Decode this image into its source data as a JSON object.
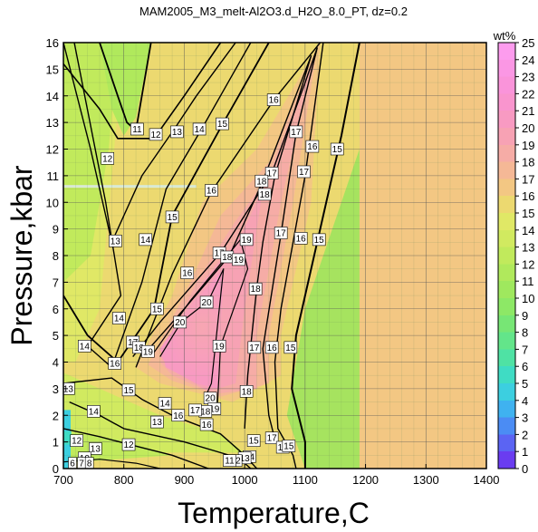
{
  "chart_data": {
    "type": "heatmap",
    "title": "MAM2005_M3_melt-Al2O3.d_H2O_8.0_PT, dz=0.2",
    "xlabel": "Temperature,C",
    "ylabel": "Pressure,kbar",
    "xlim": [
      700,
      1400
    ],
    "ylim": [
      0,
      16
    ],
    "xticks": [
      700,
      800,
      900,
      1000,
      1100,
      1200,
      1300,
      1400
    ],
    "yticks": [
      0,
      1,
      2,
      3,
      4,
      5,
      6,
      7,
      8,
      9,
      10,
      11,
      12,
      13,
      14,
      15,
      16
    ],
    "grid": true,
    "colorbar": {
      "label": "wt%",
      "min": 0,
      "max": 25,
      "ticks": [
        0,
        1,
        2,
        3,
        4,
        5,
        6,
        7,
        8,
        9,
        10,
        11,
        12,
        13,
        14,
        15,
        16,
        17,
        18,
        19,
        20,
        21,
        22,
        23,
        24,
        25
      ],
      "colors": [
        "#6a3cf0",
        "#5b64f3",
        "#4b8cf4",
        "#3fb2f0",
        "#3ccfe0",
        "#3fdcc4",
        "#4fe2a4",
        "#63e58a",
        "#77e675",
        "#8de866",
        "#9fe85e",
        "#b0e95c",
        "#c1ea5c",
        "#d1ea60",
        "#e0e866",
        "#ecd970",
        "#f3c783",
        "#f5b896",
        "#f6aca6",
        "#f7a2b4",
        "#f89ac2",
        "#f995ce",
        "#fa94da",
        "#fb97e4",
        "#fd9cee"
      ]
    },
    "subsolidus_region": {
      "x_min": 1190,
      "value": 16
    },
    "contour_labels": [
      {
        "t": 822,
        "p": 12.75,
        "v": 11
      },
      {
        "t": 773,
        "p": 11.65,
        "v": 12
      },
      {
        "t": 853,
        "p": 12.55,
        "v": 12
      },
      {
        "t": 888,
        "p": 12.65,
        "v": 13
      },
      {
        "t": 925,
        "p": 12.75,
        "v": 14
      },
      {
        "t": 963,
        "p": 12.95,
        "v": 15
      },
      {
        "t": 1048,
        "p": 13.85,
        "v": 16
      },
      {
        "t": 1085,
        "p": 12.65,
        "v": 17
      },
      {
        "t": 1112,
        "p": 12.1,
        "v": 16
      },
      {
        "t": 1153,
        "p": 12.0,
        "v": 15
      },
      {
        "t": 1045,
        "p": 11.1,
        "v": 17
      },
      {
        "t": 1028,
        "p": 10.8,
        "v": 18
      },
      {
        "t": 1033,
        "p": 10.3,
        "v": 18
      },
      {
        "t": 945,
        "p": 10.45,
        "v": 16
      },
      {
        "t": 1098,
        "p": 11.15,
        "v": 17
      },
      {
        "t": 786,
        "p": 8.55,
        "v": 13
      },
      {
        "t": 836,
        "p": 8.6,
        "v": 14
      },
      {
        "t": 880,
        "p": 9.45,
        "v": 15
      },
      {
        "t": 1003,
        "p": 8.6,
        "v": 19
      },
      {
        "t": 1060,
        "p": 8.85,
        "v": 17
      },
      {
        "t": 1093,
        "p": 8.65,
        "v": 16
      },
      {
        "t": 1123,
        "p": 8.6,
        "v": 15
      },
      {
        "t": 958,
        "p": 8.1,
        "v": 17
      },
      {
        "t": 971,
        "p": 7.95,
        "v": 18
      },
      {
        "t": 990,
        "p": 7.85,
        "v": 19
      },
      {
        "t": 905,
        "p": 7.35,
        "v": 16
      },
      {
        "t": 1018,
        "p": 6.75,
        "v": 18
      },
      {
        "t": 937,
        "p": 6.25,
        "v": 20
      },
      {
        "t": 792,
        "p": 5.65,
        "v": 14
      },
      {
        "t": 855,
        "p": 6.0,
        "v": 15
      },
      {
        "t": 893,
        "p": 5.5,
        "v": 20
      },
      {
        "t": 815,
        "p": 4.75,
        "v": 17
      },
      {
        "t": 825,
        "p": 4.55,
        "v": 18
      },
      {
        "t": 840,
        "p": 4.4,
        "v": 19
      },
      {
        "t": 958,
        "p": 4.6,
        "v": 19
      },
      {
        "t": 1016,
        "p": 4.55,
        "v": 17
      },
      {
        "t": 1045,
        "p": 4.55,
        "v": 16
      },
      {
        "t": 1076,
        "p": 4.55,
        "v": 15
      },
      {
        "t": 735,
        "p": 4.6,
        "v": 14
      },
      {
        "t": 785,
        "p": 3.95,
        "v": 16
      },
      {
        "t": 708,
        "p": 3.0,
        "v": 13
      },
      {
        "t": 750,
        "p": 2.15,
        "v": 14
      },
      {
        "t": 808,
        "p": 2.95,
        "v": 15
      },
      {
        "t": 868,
        "p": 2.45,
        "v": 14
      },
      {
        "t": 890,
        "p": 2.0,
        "v": 16
      },
      {
        "t": 855,
        "p": 1.75,
        "v": 13
      },
      {
        "t": 943,
        "p": 2.65,
        "v": 20
      },
      {
        "t": 950,
        "p": 2.25,
        "v": 19
      },
      {
        "t": 935,
        "p": 2.15,
        "v": 18
      },
      {
        "t": 918,
        "p": 2.2,
        "v": 17
      },
      {
        "t": 937,
        "p": 1.65,
        "v": 16
      },
      {
        "t": 1003,
        "p": 2.9,
        "v": 18
      },
      {
        "t": 722,
        "p": 1.05,
        "v": 12
      },
      {
        "t": 808,
        "p": 0.9,
        "v": 12
      },
      {
        "t": 753,
        "p": 0.75,
        "v": 13
      },
      {
        "t": 735,
        "p": 0.4,
        "v": 10
      },
      {
        "t": 715,
        "p": 0.2,
        "v": 6
      },
      {
        "t": 730,
        "p": 0.2,
        "v": 7
      },
      {
        "t": 743,
        "p": 0.2,
        "v": 8
      },
      {
        "t": 1015,
        "p": 1.05,
        "v": 15
      },
      {
        "t": 1045,
        "p": 1.15,
        "v": 17
      },
      {
        "t": 1063,
        "p": 0.8,
        "v": 16
      },
      {
        "t": 1073,
        "p": 0.85,
        "v": 15
      },
      {
        "t": 1008,
        "p": 0.45,
        "v": 14
      },
      {
        "t": 1000,
        "p": 0.4,
        "v": 13
      },
      {
        "t": 985,
        "p": 0.3,
        "v": 12
      },
      {
        "t": 975,
        "p": 0.3,
        "v": 11
      }
    ]
  }
}
